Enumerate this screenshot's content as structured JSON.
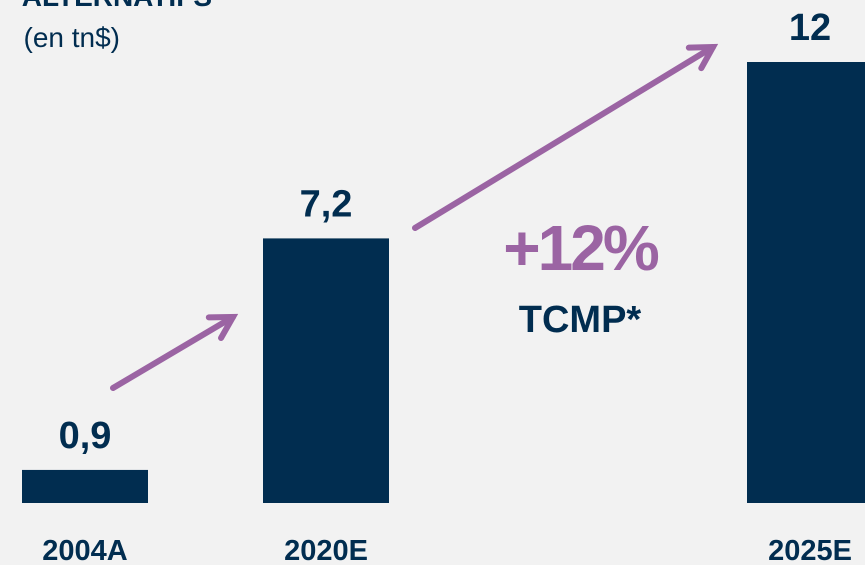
{
  "chart_data": {
    "type": "bar",
    "title": "ALTERNATIFS",
    "subtitle": "(en tn$)",
    "categories": [
      "2004A",
      "2020E",
      "2025E"
    ],
    "values": [
      0.9,
      7.2,
      12
    ],
    "value_labels": [
      "0,9",
      "7,2",
      "12"
    ],
    "color": "#012d50",
    "annotations": [
      "+12%",
      "TCMP*"
    ]
  }
}
